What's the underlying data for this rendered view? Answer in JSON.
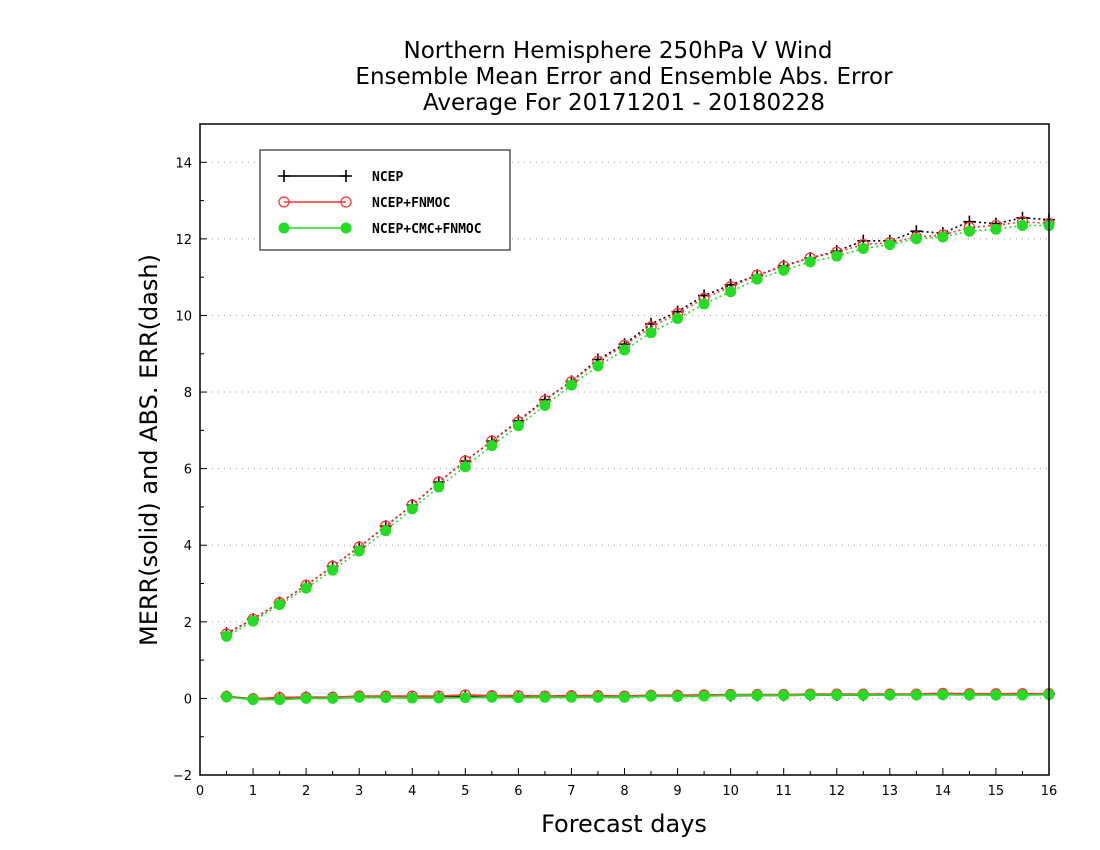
{
  "chart_data": {
    "type": "line",
    "title": [
      "Northern Hemisphere 250hPa V Wind",
      "Ensemble Mean Error and Ensemble Abs. Error",
      "Average For 20171201 - 20180228"
    ],
    "xlabel": "Forecast days",
    "ylabel": "MERR(solid) and ABS. ERR(dash)",
    "xlim": [
      0,
      16
    ],
    "ylim": [
      -2,
      15
    ],
    "xticks": [
      "0",
      "1",
      "2",
      "3",
      "4",
      "5",
      "6",
      "7",
      "8",
      "9",
      "10",
      "11",
      "12",
      "13",
      "14",
      "15",
      "16"
    ],
    "yticks": [
      "−2",
      "0",
      "2",
      "4",
      "6",
      "8",
      "10",
      "12",
      "14"
    ],
    "grid": "horizontal dotted",
    "legend_position": "top-left",
    "x": [
      0.5,
      1,
      1.5,
      2,
      2.5,
      3,
      3.5,
      4,
      4.5,
      5,
      5.5,
      6,
      6.5,
      7,
      7.5,
      8,
      8.5,
      9,
      9.5,
      10,
      10.5,
      11,
      11.5,
      12,
      12.5,
      13,
      13.5,
      14,
      14.5,
      15,
      15.5,
      16
    ],
    "series": [
      {
        "name": "NCEP",
        "color": "#000000",
        "marker": "plus",
        "abs_err": [
          1.7,
          2.07,
          2.5,
          2.95,
          3.45,
          3.95,
          4.5,
          5.05,
          5.65,
          6.2,
          6.72,
          7.25,
          7.8,
          8.28,
          8.85,
          9.25,
          9.78,
          10.1,
          10.52,
          10.8,
          11.05,
          11.3,
          11.5,
          11.68,
          11.95,
          11.95,
          12.2,
          12.15,
          12.45,
          12.4,
          12.55,
          12.5
        ],
        "mean_err": [
          0.05,
          -0.02,
          0.02,
          0.03,
          0.02,
          0.05,
          0.05,
          0.05,
          0.04,
          0.06,
          0.06,
          0.05,
          0.05,
          0.06,
          0.06,
          0.05,
          0.07,
          0.07,
          0.08,
          0.07,
          0.08,
          0.08,
          0.09,
          0.09,
          0.09,
          0.1,
          0.1,
          0.11,
          0.1,
          0.1,
          0.11,
          0.11
        ]
      },
      {
        "name": "NCEP+FNMOC",
        "color": "#ff3333",
        "marker": "open-circle",
        "abs_err": [
          1.68,
          2.07,
          2.5,
          2.95,
          3.45,
          3.95,
          4.5,
          5.05,
          5.65,
          6.2,
          6.72,
          7.22,
          7.78,
          8.27,
          8.8,
          9.22,
          9.7,
          10.05,
          10.45,
          10.75,
          11.05,
          11.28,
          11.5,
          11.65,
          11.85,
          11.9,
          12.05,
          12.1,
          12.3,
          12.35,
          12.45,
          12.4
        ],
        "mean_err": [
          0.05,
          -0.01,
          0.02,
          0.03,
          0.03,
          0.06,
          0.06,
          0.06,
          0.06,
          0.09,
          0.07,
          0.07,
          0.06,
          0.07,
          0.07,
          0.06,
          0.08,
          0.08,
          0.09,
          0.1,
          0.1,
          0.1,
          0.11,
          0.11,
          0.11,
          0.11,
          0.11,
          0.13,
          0.12,
          0.12,
          0.12,
          0.12
        ]
      },
      {
        "name": "NCEP+CMC+FNMOC",
        "color": "#22dd22",
        "marker": "filled-circle",
        "abs_err": [
          1.62,
          2.02,
          2.45,
          2.88,
          3.35,
          3.85,
          4.38,
          4.95,
          5.52,
          6.05,
          6.6,
          7.12,
          7.65,
          8.18,
          8.68,
          9.1,
          9.55,
          9.92,
          10.3,
          10.62,
          10.95,
          11.18,
          11.4,
          11.55,
          11.75,
          11.85,
          12.0,
          12.05,
          12.2,
          12.25,
          12.35,
          12.35
        ],
        "mean_err": [
          0.04,
          -0.03,
          -0.03,
          0.0,
          0.0,
          0.03,
          0.02,
          0.01,
          0.01,
          0.02,
          0.03,
          0.02,
          0.03,
          0.03,
          0.03,
          0.03,
          0.06,
          0.05,
          0.06,
          0.08,
          0.08,
          0.08,
          0.09,
          0.09,
          0.09,
          0.09,
          0.09,
          0.1,
          0.09,
          0.09,
          0.09,
          0.1
        ]
      }
    ]
  }
}
